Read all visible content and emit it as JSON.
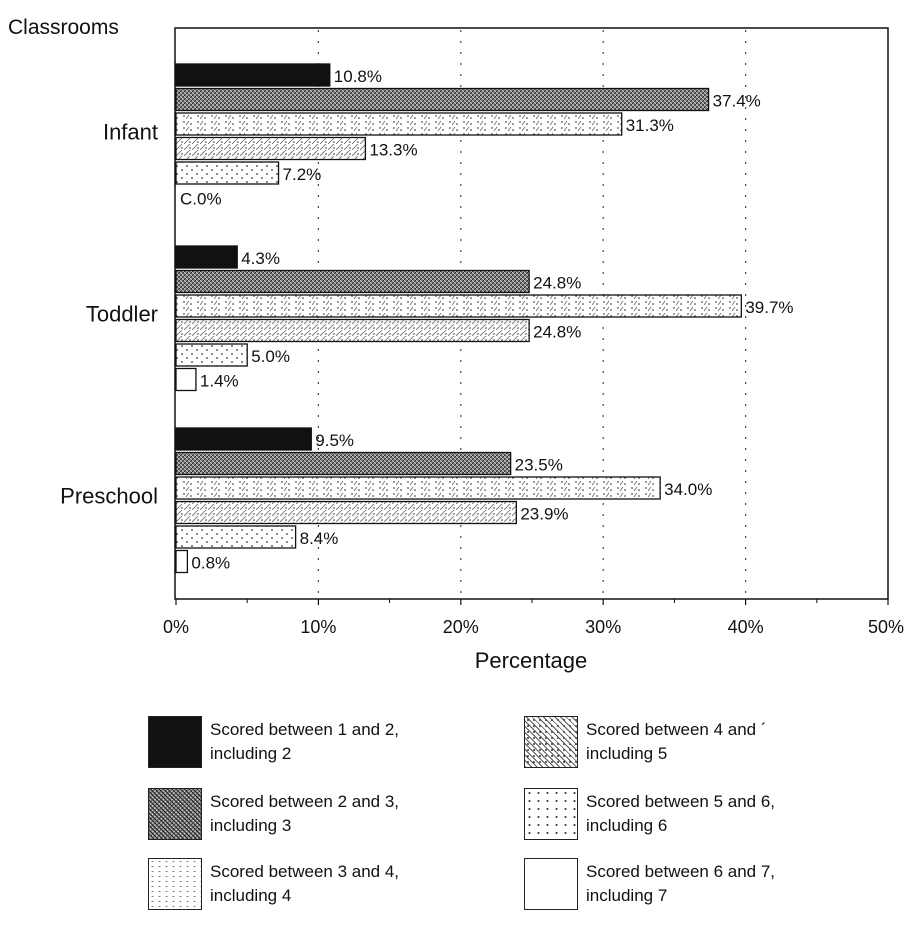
{
  "chart_data": {
    "type": "bar",
    "orientation": "horizontal",
    "ylabel": "Classrooms",
    "xlabel": "Percentage",
    "xlim": [
      0,
      50
    ],
    "x_ticks": [
      "0%",
      "10%",
      "20%",
      "30%",
      "40%",
      "50%"
    ],
    "categories": [
      "Infant",
      "Toddler",
      "Preschool"
    ],
    "series": [
      {
        "name": "Scored between 1 and 2,\nincluding 2",
        "pattern": "black",
        "values": [
          10.8,
          4.3,
          9.5
        ],
        "labels": [
          "10.8%",
          "4.3%",
          "9.5%"
        ]
      },
      {
        "name": "Scored between 2 and 3,\nincluding 3",
        "pattern": "dense",
        "values": [
          37.4,
          24.8,
          23.5
        ],
        "labels": [
          "37.4%",
          "24.8%",
          "23.5%"
        ]
      },
      {
        "name": "Scored between 3 and 4,\nincluding 4",
        "pattern": "light",
        "values": [
          31.3,
          39.7,
          34.0
        ],
        "labels": [
          "31.3%",
          "39.7%",
          "34.0%"
        ]
      },
      {
        "name": "Scored between 4 and ´\nincluding 5",
        "pattern": "mid",
        "values": [
          13.3,
          24.8,
          23.9
        ],
        "labels": [
          "13.3%",
          "24.8%",
          "23.9%"
        ]
      },
      {
        "name": "Scored between 5 and 6,\nincluding 6",
        "pattern": "dot",
        "values": [
          7.2,
          5.0,
          8.4
        ],
        "labels": [
          "7.2%",
          "5.0%",
          "8.4%"
        ]
      },
      {
        "name": "Scored between 6 and 7,\nincluding 7",
        "pattern": "white",
        "values": [
          0.0,
          1.4,
          0.8
        ],
        "labels": [
          "C.0%",
          "1.4%",
          "0.8%"
        ]
      }
    ],
    "grid": "dotted vertical",
    "legend_position": "bottom"
  }
}
